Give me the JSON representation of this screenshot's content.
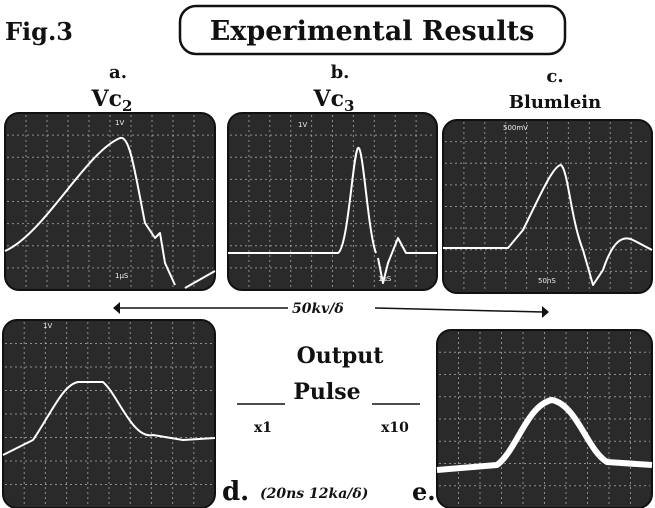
{
  "figure": {
    "label": "Fig.3",
    "title": "Experimental Results"
  },
  "panels": [
    {
      "letter": "a.",
      "name": "Vc",
      "sub": "2",
      "scales": [
        "1V",
        "1μS"
      ]
    },
    {
      "letter": "b.",
      "name": "Vc",
      "sub": "3",
      "scales": [
        "1V",
        "1μS"
      ]
    },
    {
      "letter": "c.",
      "name": "Blumlein",
      "scales": [
        "500mV",
        "50nS"
      ]
    },
    {
      "scales": [
        "1V"
      ]
    },
    {
      "scales": []
    }
  ],
  "scale_note": "50kv/δ",
  "output": {
    "line1": "Output",
    "line2": "Pulse",
    "left": "x1",
    "right": "x10"
  },
  "bottom": {
    "d": "d.",
    "note": "(20ns 12ka/δ)",
    "e": "e."
  }
}
